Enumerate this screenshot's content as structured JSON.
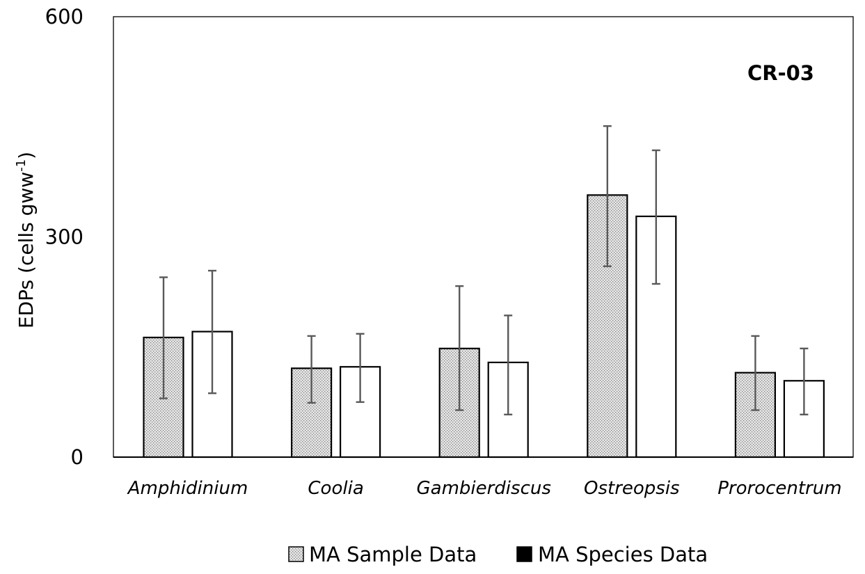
{
  "chart_data": {
    "type": "bar",
    "title": "",
    "annotation": "CR-03",
    "xlabel": "",
    "ylabel": {
      "main": "EDPs (cells gww",
      "superscript": "-1",
      "close": ")"
    },
    "ylim": [
      0,
      600
    ],
    "yticks": [
      0,
      300,
      600
    ],
    "ytick_labels": [
      "0",
      "300",
      "600"
    ],
    "grid": false,
    "legend_position": "bottom-center",
    "categories": [
      "Amphidinium",
      "Coolia",
      "Gambierdiscus",
      "Ostreopsis",
      "Prorocentrum"
    ],
    "series": [
      {
        "name": "MA Sample Data",
        "fill": "dotted-gray",
        "values": [
          163,
          121,
          148,
          357,
          115
        ],
        "error_low": [
          80,
          74,
          64,
          260,
          64
        ],
        "error_high": [
          245,
          165,
          233,
          451,
          165
        ]
      },
      {
        "name": "MA Species Data",
        "fill": "white",
        "values": [
          171,
          123,
          129,
          328,
          104
        ],
        "error_low": [
          87,
          75,
          58,
          236,
          58
        ],
        "error_high": [
          254,
          168,
          193,
          418,
          148
        ]
      }
    ]
  },
  "colors": {
    "bar_outline": "#000000",
    "error_bar": "#595959",
    "pattern_bg": "#e6e6e6",
    "pattern_dot": "#7a7a7a",
    "species_fill": "#ffffff",
    "frame": "#000000"
  }
}
